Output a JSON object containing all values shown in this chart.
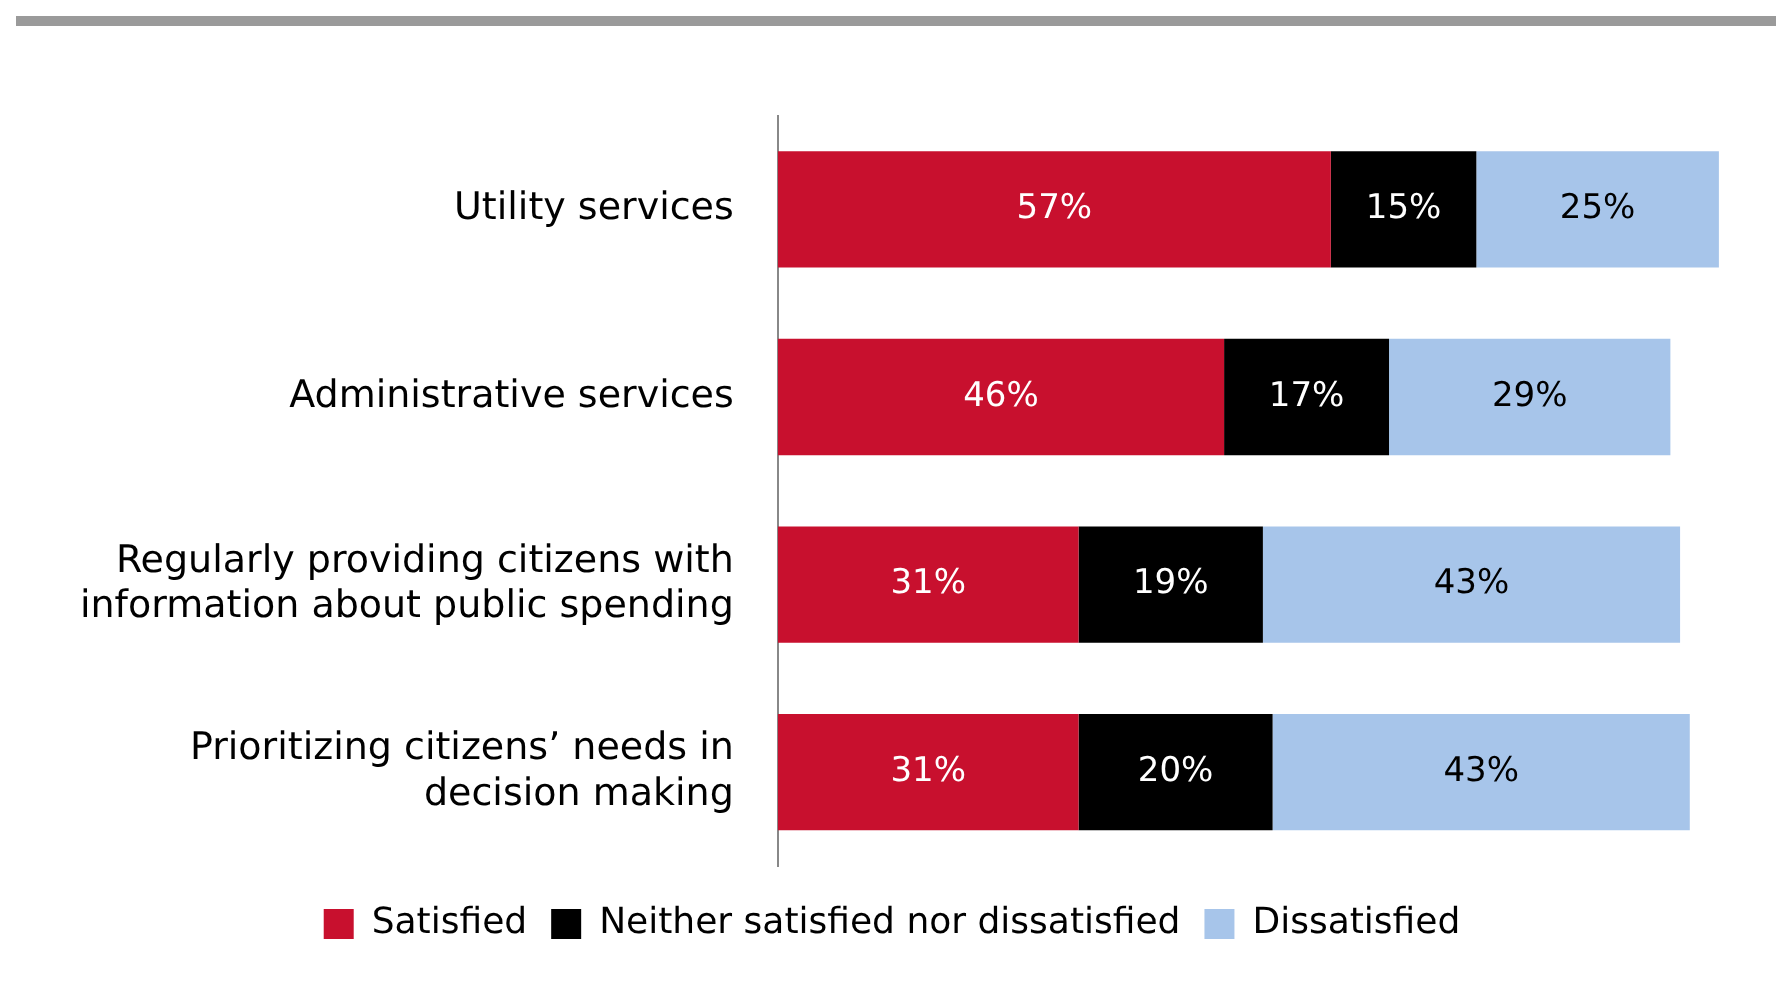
{
  "chart_data": {
    "type": "bar",
    "orientation": "horizontal",
    "stacked": true,
    "relative": false,
    "tick_labels": "y",
    "grid": false,
    "legend": "bottom",
    "categories": [
      "Utility services",
      "Administrative services",
      "Regularly providing citizens with information about public spending",
      "Prioritizing citizens’ needs in decision making"
    ],
    "series": [
      {
        "name": "Satisfied",
        "color": "#c8102e",
        "values": [
          57,
          46,
          31,
          31
        ],
        "value_labels": [
          "57%",
          "46%",
          "31%",
          "31%"
        ]
      },
      {
        "name": "Neither satisfied nor dissatisfied",
        "color": "#000000",
        "values": [
          15,
          17,
          19,
          20
        ],
        "value_labels": [
          "15%",
          "17%",
          "19%",
          "20%"
        ]
      },
      {
        "name": "Dissatisfied",
        "color": "#a7c5ea",
        "values": [
          25,
          29,
          43,
          43
        ],
        "value_labels": [
          "25%",
          "29%",
          "43%",
          "43%"
        ]
      }
    ]
  }
}
